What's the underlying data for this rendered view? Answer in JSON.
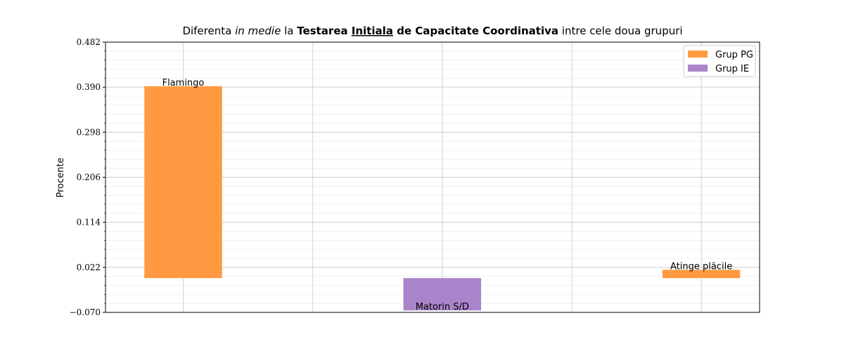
{
  "chart_data": {
    "type": "bar",
    "title": {
      "prefix": "Diferenta ",
      "italic": "in medie",
      "mid1": " la ",
      "bold1": "Testarea ",
      "bold_underline": "Initiala",
      "bold2": " de Capacitate Coordinativa",
      "suffix": " intre cele doua grupuri"
    },
    "xlabel": "",
    "ylabel": "Procente",
    "ylim": [
      -0.07,
      0.482
    ],
    "yticks": [
      "0.482",
      "0.390",
      "0.298",
      "0.206",
      "0.114",
      "0.022",
      "−0.070"
    ],
    "ytick_values": [
      0.482,
      0.39,
      0.298,
      0.206,
      0.114,
      0.022,
      -0.07
    ],
    "grid": true,
    "legend_position": "top-right",
    "series": [
      {
        "name": "Grup PG",
        "color": "#ff9a42"
      },
      {
        "name": "Grup IE",
        "color": "#aa84cb"
      }
    ],
    "bars": [
      {
        "label": "Flamingo",
        "value": 0.392,
        "series": "Grup PG",
        "position": 0
      },
      {
        "label": "Matorin S/D",
        "value": -0.066,
        "series": "Grup IE",
        "position": 2
      },
      {
        "label": "Atinge plăcile",
        "value": 0.017,
        "series": "Grup PG",
        "position": 4
      }
    ]
  }
}
